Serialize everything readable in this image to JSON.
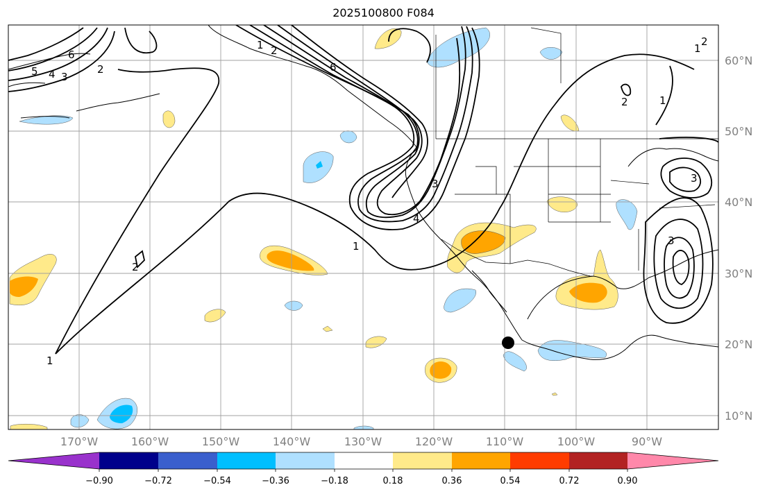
{
  "title": "2025100800 F084",
  "lat_labels": [
    "60°N",
    "50°N",
    "40°N",
    "30°N",
    "20°N",
    "10°N"
  ],
  "lon_labels": [
    "170°W",
    "160°W",
    "150°W",
    "140°W",
    "130°W",
    "120°W",
    "110°W",
    "100°W",
    "90°W"
  ],
  "colorbar": {
    "ticks": [
      "−0.90",
      "−0.72",
      "−0.54",
      "−0.36",
      "−0.18",
      "0.18",
      "0.36",
      "0.54",
      "0.72",
      "0.90"
    ],
    "colors": [
      "#9932cc",
      "#00008b",
      "#3a5fcd",
      "#00bfff",
      "#afe0ff",
      "#ffffff",
      "#ffea8a",
      "#ffa500",
      "#ff3c00",
      "#b22222",
      "#ff88aa"
    ]
  },
  "contour_labels": [
    "1",
    "2",
    "3",
    "4",
    "5",
    "6"
  ],
  "colors": {
    "positive_light": "#ffea8a",
    "positive_mid": "#ffa500",
    "negative_light": "#afe0ff",
    "negative_mid": "#00bfff",
    "contour": "#000000",
    "grid": "#a0a0a0"
  }
}
